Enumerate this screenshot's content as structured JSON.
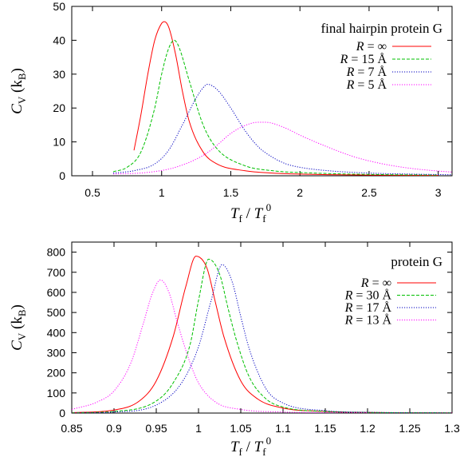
{
  "chart_data": [
    {
      "type": "line",
      "title": "final hairpin protein G",
      "xlabel": "T_f / T_f^0",
      "ylabel": "C_V (k_B)",
      "xlim": [
        0.35,
        3.1
      ],
      "ylim": [
        0,
        50
      ],
      "xticks": [
        "0.5",
        "1",
        "1.5",
        "2",
        "2.5",
        "3"
      ],
      "yticks": [
        "0",
        "10",
        "20",
        "30",
        "40",
        "50"
      ],
      "legend_position": "top-right",
      "grid": false,
      "series": [
        {
          "name": "R = ∞",
          "color": "#ff0000",
          "dash": "solid",
          "x": [
            0.8,
            0.85,
            0.9,
            0.95,
            1.0,
            1.02,
            1.05,
            1.1,
            1.15,
            1.2,
            1.3,
            1.4,
            1.6,
            1.8,
            2.1,
            2.5,
            3.0
          ],
          "y": [
            7.5,
            18,
            30,
            40,
            45,
            45.5,
            44,
            36,
            25,
            16,
            7,
            3.5,
            1.5,
            0.8,
            0.4,
            0.2,
            0.1
          ]
        },
        {
          "name": "R = 15 Å",
          "color": "#00c000",
          "dash": "dashed",
          "x": [
            0.65,
            0.75,
            0.85,
            0.95,
            1.0,
            1.05,
            1.09,
            1.12,
            1.2,
            1.3,
            1.4,
            1.6,
            1.8,
            2.1,
            2.5,
            3.0
          ],
          "y": [
            1.2,
            2.5,
            7,
            20,
            30,
            37.5,
            40,
            38.5,
            28,
            15,
            8,
            3,
            1.5,
            0.8,
            0.4,
            0.2
          ]
        },
        {
          "name": "R = 7 Å",
          "color": "#0000c0",
          "dash": "dotted",
          "x": [
            0.65,
            0.8,
            0.95,
            1.05,
            1.15,
            1.25,
            1.3,
            1.33,
            1.4,
            1.5,
            1.6,
            1.7,
            1.8,
            1.9,
            2.0,
            2.2,
            2.5,
            2.8,
            3.1
          ],
          "y": [
            0.8,
            1.5,
            3.5,
            7.5,
            15,
            23,
            26,
            27,
            25.5,
            20,
            13.5,
            8.5,
            5.5,
            3.5,
            2.5,
            1.5,
            0.8,
            0.5,
            0.3
          ]
        },
        {
          "name": "R = 5 Å",
          "color": "#ff00ff",
          "dash": "dotted",
          "x": [
            0.65,
            0.9,
            1.1,
            1.3,
            1.4,
            1.5,
            1.6,
            1.7,
            1.75,
            1.8,
            1.9,
            2.0,
            2.2,
            2.4,
            2.6,
            2.8,
            3.0,
            3.1
          ],
          "y": [
            0.5,
            1,
            2.5,
            6,
            9,
            12.5,
            14.8,
            15.8,
            15.8,
            15.5,
            14,
            12,
            8.5,
            5.5,
            3.5,
            2.2,
            1.4,
            1.1
          ]
        }
      ]
    },
    {
      "type": "line",
      "title": "protein G",
      "xlabel": "T_f / T_f^0",
      "ylabel": "C_V (k_B)",
      "xlim": [
        0.85,
        1.3
      ],
      "ylim": [
        0,
        850
      ],
      "xticks": [
        "0.85",
        "0.9",
        "0.95",
        "1",
        "1.05",
        "1.1",
        "1.15",
        "1.2",
        "1.25",
        "1.3"
      ],
      "yticks": [
        "0",
        "100",
        "200",
        "300",
        "400",
        "500",
        "600",
        "700",
        "800"
      ],
      "legend_position": "top-right",
      "grid": false,
      "series": [
        {
          "name": "R = ∞",
          "color": "#ff0000",
          "dash": "solid",
          "x": [
            0.85,
            0.9,
            0.93,
            0.95,
            0.97,
            0.985,
            0.997,
            1.01,
            1.02,
            1.03,
            1.05,
            1.07,
            1.1,
            1.15,
            1.2,
            1.3
          ],
          "y": [
            2,
            15,
            60,
            160,
            380,
            630,
            780,
            720,
            550,
            380,
            160,
            70,
            25,
            8,
            3,
            1
          ]
        },
        {
          "name": "R = 30 Å",
          "color": "#00c000",
          "dash": "dashed",
          "x": [
            0.85,
            0.9,
            0.95,
            0.97,
            0.99,
            1.0,
            1.012,
            1.025,
            1.035,
            1.045,
            1.06,
            1.08,
            1.1,
            1.15,
            1.2,
            1.3
          ],
          "y": [
            1,
            8,
            60,
            150,
            340,
            560,
            765,
            690,
            520,
            360,
            180,
            70,
            30,
            8,
            3,
            1
          ]
        },
        {
          "name": "R = 17 Å",
          "color": "#0000c0",
          "dash": "dotted",
          "x": [
            0.85,
            0.9,
            0.95,
            0.98,
            1.0,
            1.015,
            1.028,
            1.04,
            1.05,
            1.06,
            1.08,
            1.1,
            1.15,
            1.2,
            1.3
          ],
          "y": [
            0,
            5,
            40,
            150,
            330,
            560,
            738,
            650,
            480,
            320,
            120,
            50,
            12,
            4,
            1
          ]
        },
        {
          "name": "R = 13 Å",
          "color": "#ff00ff",
          "dash": "dotted",
          "x": [
            0.85,
            0.88,
            0.9,
            0.92,
            0.935,
            0.945,
            0.955,
            0.965,
            0.975,
            0.99,
            1.0,
            1.02,
            1.05,
            1.1,
            1.15,
            1.2
          ],
          "y": [
            18,
            55,
            110,
            250,
            450,
            590,
            662,
            600,
            450,
            250,
            150,
            55,
            18,
            5,
            2,
            1
          ]
        }
      ]
    }
  ]
}
